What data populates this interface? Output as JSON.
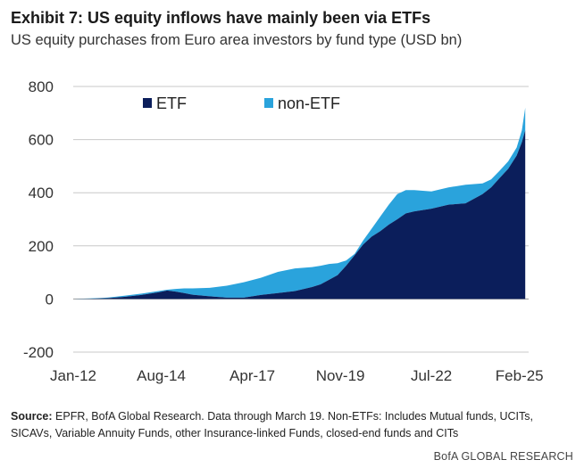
{
  "header": {
    "title": "Exhibit 7: US equity inflows have mainly been via ETFs",
    "subtitle": "US equity purchases from Euro area investors by fund type (USD bn)"
  },
  "footer": {
    "source_label": "Source:",
    "source_text": " EPFR, BofA Global Research. Data through March 19. Non-ETFs: Includes Mutual funds, UCITs, SICAVs, Variable Annuity Funds, other Insurance-linked Funds, closed-end funds and CITs",
    "brand": "BofA GLOBAL RESEARCH"
  },
  "colors": {
    "etf": "#0b1e5b",
    "non_etf": "#2aa3dc"
  },
  "chart_data": {
    "type": "area",
    "stacked": true,
    "title": "US equity purchases from Euro area investors by fund type (USD bn)",
    "ylim": [
      -200,
      800
    ],
    "yticks": [
      -200,
      0,
      200,
      400,
      600,
      800
    ],
    "xlim": [
      2012.0,
      2025.35
    ],
    "xtick_labels": [
      "Jan-12",
      "Aug-14",
      "Apr-17",
      "Nov-19",
      "Jul-22",
      "Feb-25"
    ],
    "xtick_positions": [
      2012.0,
      2014.58,
      2017.25,
      2019.83,
      2022.5,
      2025.08
    ],
    "legend": [
      "ETF",
      "non-ETF"
    ],
    "legend_position": "top-left",
    "grid": "horizontal",
    "series": [
      {
        "name": "ETF",
        "x": [
          2012.0,
          2012.5,
          2013.0,
          2013.5,
          2014.0,
          2014.5,
          2014.75,
          2015.0,
          2015.25,
          2015.5,
          2016.0,
          2016.5,
          2017.0,
          2017.5,
          2018.0,
          2018.5,
          2019.0,
          2019.25,
          2019.5,
          2019.75,
          2020.0,
          2020.25,
          2020.5,
          2020.75,
          2021.0,
          2021.25,
          2021.5,
          2021.75,
          2022.0,
          2022.5,
          2023.0,
          2023.5,
          2024.0,
          2024.25,
          2024.5,
          2024.75,
          2025.0,
          2025.15,
          2025.25
        ],
        "values": [
          0,
          1,
          3,
          8,
          15,
          25,
          32,
          28,
          22,
          16,
          10,
          5,
          5,
          15,
          22,
          30,
          45,
          55,
          72,
          90,
          125,
          165,
          205,
          235,
          255,
          280,
          300,
          322,
          330,
          340,
          355,
          360,
          395,
          420,
          455,
          490,
          540,
          590,
          635
        ]
      },
      {
        "name": "non-ETF",
        "x": [
          2012.0,
          2012.5,
          2013.0,
          2013.5,
          2014.0,
          2014.5,
          2014.75,
          2015.0,
          2015.25,
          2015.5,
          2016.0,
          2016.5,
          2017.0,
          2017.5,
          2018.0,
          2018.5,
          2019.0,
          2019.25,
          2019.5,
          2019.75,
          2020.0,
          2020.25,
          2020.5,
          2020.75,
          2021.0,
          2021.25,
          2021.5,
          2021.75,
          2022.0,
          2022.5,
          2023.0,
          2023.5,
          2024.0,
          2024.25,
          2024.5,
          2024.75,
          2025.0,
          2025.15,
          2025.25
        ],
        "values": [
          0,
          1,
          2,
          4,
          5,
          5,
          3,
          10,
          18,
          24,
          32,
          45,
          58,
          65,
          80,
          85,
          75,
          70,
          60,
          45,
          20,
          5,
          15,
          30,
          55,
          75,
          95,
          88,
          80,
          65,
          65,
          70,
          40,
          30,
          28,
          28,
          30,
          45,
          85
        ]
      }
    ]
  }
}
